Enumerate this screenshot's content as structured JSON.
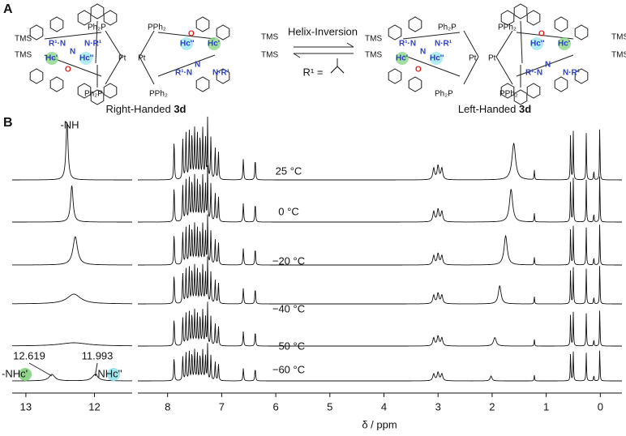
{
  "panel_a": {
    "label": "A",
    "arrow_label": "Helix-Inversion",
    "r1_label": "R¹ =",
    "left": {
      "caption": "Right-Handed ",
      "compound": "3d",
      "labels": [
        "TMS",
        "TMS",
        "TMS",
        "TMS",
        "Ph₂P",
        "PPh₂",
        "Ph₂P",
        "PPh₂",
        "Pt",
        "Pt",
        "R¹·N",
        "N·R¹",
        "N",
        "Hc'",
        "Hc''",
        "O",
        "Hc''",
        "Hc'",
        "R¹·N",
        "N·R¹",
        "N",
        "O"
      ]
    },
    "right": {
      "caption": "Left-Handed ",
      "compound": "3d",
      "labels": [
        "TMS",
        "TMS",
        "TMS",
        "TMS",
        "Ph₂P",
        "PPh₂",
        "Ph₂P",
        "PPh₂",
        "Pt",
        "Pt",
        "R¹·N",
        "N·R¹",
        "N",
        "Hc'",
        "Hc''",
        "O",
        "Hc''",
        "Hc'",
        "R¹·N",
        "N·R¹",
        "N",
        "O"
      ]
    }
  },
  "panel_b": {
    "label": "B",
    "x_label": "δ / ppm",
    "nh_label": "-NH",
    "split_shifts": [
      "12.619",
      "11.993"
    ],
    "split_labels": [
      "-NHc'",
      "-NHc''"
    ],
    "left_xlim": [
      13.2,
      11.45
    ],
    "left_xticks": [
      13,
      12
    ],
    "xlim": [
      8.55,
      -0.4
    ],
    "xticks": [
      8,
      7,
      6,
      5,
      4,
      3,
      2,
      1,
      0
    ],
    "peaks": [
      [
        7.88,
        50,
        0.008
      ],
      [
        7.72,
        52,
        0.008
      ],
      [
        7.66,
        60,
        0.008
      ],
      [
        7.6,
        62,
        0.008
      ],
      [
        7.55,
        58,
        0.008
      ],
      [
        7.5,
        62,
        0.008
      ],
      [
        7.45,
        58,
        0.008
      ],
      [
        7.4,
        55,
        0.008
      ],
      [
        7.35,
        62,
        0.008
      ],
      [
        7.3,
        52,
        0.008
      ],
      [
        7.26,
        75,
        0.006
      ],
      [
        7.2,
        52,
        0.008
      ],
      [
        7.12,
        40,
        0.008
      ],
      [
        7.06,
        35,
        0.008
      ],
      [
        6.6,
        26,
        0.008
      ],
      [
        6.38,
        26,
        0.008
      ],
      [
        3.08,
        14,
        0.02
      ],
      [
        3.0,
        17,
        0.02
      ],
      [
        2.93,
        14,
        0.02
      ],
      [
        1.22,
        12,
        0.006
      ],
      [
        0.55,
        60,
        0.006
      ],
      [
        0.5,
        60,
        0.006
      ],
      [
        0.26,
        58,
        0.006
      ],
      [
        0.12,
        12,
        0.006
      ],
      [
        0.01,
        75,
        0.005
      ]
    ],
    "spectra": [
      {
        "temperature": "25 °C",
        "scale": 1,
        "broad_peak": [
          1.6,
          45,
          0.04
        ],
        "nh_peaks": [
          [
            12.4,
            72,
            0.018
          ]
        ]
      },
      {
        "temperature": "0 °C",
        "scale": 0.9,
        "broad_peak": [
          1.65,
          45,
          0.035
        ],
        "nh_peaks": [
          [
            12.33,
            45,
            0.022
          ]
        ]
      },
      {
        "temperature": "−20 °C",
        "scale": 0.8,
        "broad_peak": [
          1.75,
          45,
          0.035
        ],
        "nh_peaks": [
          [
            12.28,
            35,
            0.04
          ]
        ]
      },
      {
        "temperature": "−40 °C",
        "scale": 0.75,
        "broad_peak": [
          1.86,
          30,
          0.03
        ],
        "nh_peaks": [
          [
            12.3,
            12,
            0.12
          ]
        ]
      },
      {
        "temperature": "−50 °C",
        "scale": 0.7,
        "broad_peak": [
          1.95,
          15,
          0.03
        ],
        "nh_peaks": [
          [
            12.3,
            4,
            0.25
          ]
        ]
      },
      {
        "temperature": "−60 °C",
        "scale": 0.6,
        "broad_peak": [
          2.02,
          10,
          0.02
        ],
        "nh_peaks": [
          [
            12.62,
            8,
            0.05
          ],
          [
            11.99,
            8,
            0.05
          ]
        ]
      }
    ]
  }
}
